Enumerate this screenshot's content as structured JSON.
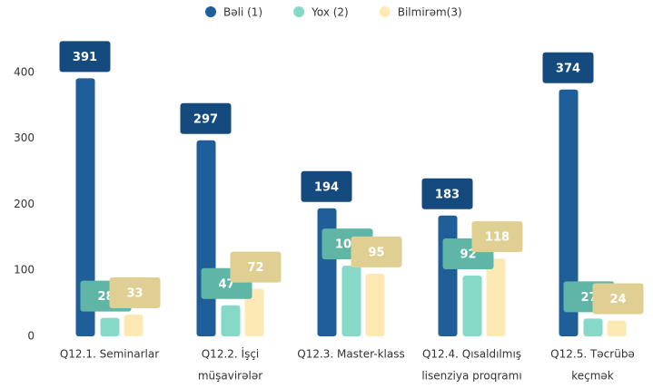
{
  "chart_data": {
    "type": "bar",
    "categories": [
      [
        "Q12.1. Seminarlar"
      ],
      [
        "Q12.2. İşçi",
        "müşavirələr"
      ],
      [
        "Q12.3. Master-klass"
      ],
      [
        "Q12.4. Qısaldılmış",
        "lisenziya proqramı"
      ],
      [
        "Q12.5. Təcrübə",
        "keçmək"
      ]
    ],
    "series": [
      {
        "name": "Bəli (1)",
        "color": "#1f5e98",
        "label_color": "#154a7e",
        "values": [
          391,
          297,
          194,
          183,
          374
        ]
      },
      {
        "name": "Yox (2)",
        "color": "#86d9c6",
        "label_color": "#5fb5a6",
        "values": [
          28,
          47,
          107,
          92,
          27
        ]
      },
      {
        "name": "Bilmirəm(3)",
        "color": "#fde9b3",
        "label_color": "#e0cf93",
        "values": [
          33,
          72,
          95,
          118,
          24
        ]
      }
    ],
    "ylim": [
      0,
      430
    ],
    "yticks": [
      0,
      100,
      200,
      300,
      400
    ],
    "grid": false,
    "legend": "top"
  }
}
